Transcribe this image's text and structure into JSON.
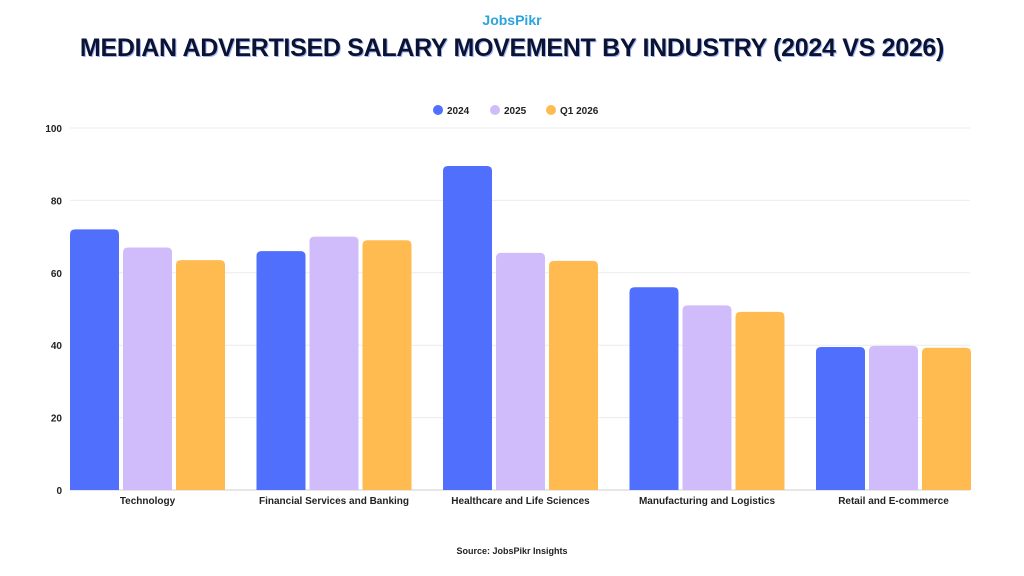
{
  "brand": "JobsPikr",
  "source": "Source: JobsPikr Insights",
  "colors": {
    "2024": "#4f6ffc",
    "2025": "#d0bcfb",
    "Q1 2026": "#ffbb4f"
  },
  "chart_data": {
    "type": "bar",
    "title": "MEDIAN ADVERTISED SALARY MOVEMENT BY INDUSTRY (2024 VS 2026)",
    "xlabel": "",
    "ylabel": "",
    "ylim": [
      0,
      100
    ],
    "yticks": [
      0,
      20,
      40,
      60,
      80,
      100
    ],
    "grid": true,
    "legend": "top-center",
    "categories": [
      "Technology",
      "Financial Services and Banking",
      "Healthcare and Life Sciences",
      "Manufacturing and Logistics",
      "Retail and E-commerce"
    ],
    "series": [
      {
        "name": "2024",
        "values": [
          72,
          66,
          89.5,
          56,
          39.5
        ]
      },
      {
        "name": "2025",
        "values": [
          67,
          70,
          65.5,
          51,
          39.8
        ]
      },
      {
        "name": "Q1 2026",
        "values": [
          63.5,
          69,
          63.3,
          49.2,
          39.3
        ]
      }
    ]
  }
}
